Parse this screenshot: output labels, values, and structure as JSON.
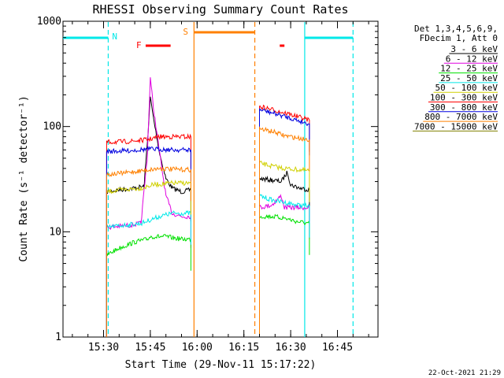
{
  "chart_data": {
    "type": "line",
    "title": "RHESSI Observing Summary Count Rates",
    "xlabel": "Start Time (29-Nov-11 15:17:22)",
    "ylabel": "Count Rate (s⁻¹ detector⁻¹)",
    "y_scale": "log",
    "ylim": [
      1,
      1000
    ],
    "xlim": [
      "15:17",
      "16:58"
    ],
    "x_ticks": [
      "15:30",
      "15:45",
      "16:00",
      "16:15",
      "16:30",
      "16:45"
    ],
    "y_ticks": [
      "1",
      "10",
      "100",
      "1000"
    ],
    "footer": "22-Oct-2021 21:29",
    "legend_header": [
      "Det 1,3,4,5,6,9,",
      "FDecim 1, Att 0"
    ],
    "series": [
      {
        "name": "3 - 6 keV",
        "color": "#000000",
        "segments": [
          [
            [
              "15:31",
              24
            ],
            [
              "15:35",
              25
            ],
            [
              "15:40",
              26
            ],
            [
              "15:43",
              27
            ],
            [
              "15:44.5",
              110
            ],
            [
              "15:45",
              190
            ],
            [
              "15:46",
              120
            ],
            [
              "15:48",
              55
            ],
            [
              "15:50",
              32
            ],
            [
              "15:52",
              26
            ],
            [
              "15:55",
              24
            ],
            [
              "15:58",
              25
            ]
          ],
          [
            [
              "16:20",
              32
            ],
            [
              "16:24",
              31
            ],
            [
              "16:27",
              30
            ],
            [
              "16:29",
              37
            ],
            [
              "16:30",
              28
            ],
            [
              "16:33",
              26
            ],
            [
              "16:36",
              25
            ]
          ]
        ]
      },
      {
        "name": "6 - 12 keV",
        "color": "#e000e0",
        "segments": [
          [
            [
              "15:31",
              11
            ],
            [
              "15:38",
              11.5
            ],
            [
              "15:42",
              12
            ],
            [
              "15:44",
              50
            ],
            [
              "15:45",
              290
            ],
            [
              "15:46",
              150
            ],
            [
              "15:48",
              55
            ],
            [
              "15:50",
              22
            ],
            [
              "15:52",
              15
            ],
            [
              "15:55",
              14
            ],
            [
              "15:58",
              14
            ]
          ],
          [
            [
              "16:20",
              17
            ],
            [
              "16:24",
              18
            ],
            [
              "16:27",
              22
            ],
            [
              "16:28",
              17
            ],
            [
              "16:32",
              17
            ],
            [
              "16:36",
              17
            ]
          ]
        ]
      },
      {
        "name": "12 - 25 keV",
        "color": "#00e000",
        "segments": [
          [
            [
              "15:31",
              6
            ],
            [
              "15:35",
              7
            ],
            [
              "15:40",
              8
            ],
            [
              "15:44",
              8.5
            ],
            [
              "15:45",
              9
            ],
            [
              "15:50",
              9
            ],
            [
              "15:55",
              8.5
            ],
            [
              "15:58",
              8.5
            ]
          ],
          [
            [
              "16:20",
              14
            ],
            [
              "16:24",
              14
            ],
            [
              "16:28",
              13.5
            ],
            [
              "16:32",
              12.5
            ],
            [
              "16:36",
              12
            ]
          ]
        ]
      },
      {
        "name": "25 - 50 keV",
        "color": "#00e8e8",
        "segments": [
          [
            [
              "15:31",
              11
            ],
            [
              "15:36",
              11.5
            ],
            [
              "15:42",
              12
            ],
            [
              "15:45",
              13
            ],
            [
              "15:48",
              14
            ],
            [
              "15:52",
              15
            ],
            [
              "15:58",
              15
            ]
          ],
          [
            [
              "16:20",
              22
            ],
            [
              "16:24",
              20
            ],
            [
              "16:28",
              19
            ],
            [
              "16:32",
              18
            ],
            [
              "16:36",
              17.5
            ]
          ]
        ]
      },
      {
        "name": "50 - 100 keV",
        "color": "#d0d000",
        "segments": [
          [
            [
              "15:31",
              24
            ],
            [
              "15:36",
              25
            ],
            [
              "15:42",
              26
            ],
            [
              "15:46",
              28
            ],
            [
              "15:52",
              29
            ],
            [
              "15:58",
              29
            ]
          ],
          [
            [
              "16:20",
              45
            ],
            [
              "16:24",
              42
            ],
            [
              "16:28",
              40
            ],
            [
              "16:32",
              39
            ],
            [
              "16:36",
              38
            ]
          ]
        ]
      },
      {
        "name": "100 - 300 keV",
        "color": "#ff0000",
        "segments": [
          [
            [
              "15:31",
              71
            ],
            [
              "15:38",
              72
            ],
            [
              "15:44",
              75
            ],
            [
              "15:48",
              80
            ],
            [
              "15:52",
              80
            ],
            [
              "15:58",
              80
            ]
          ],
          [
            [
              "16:20",
              155
            ],
            [
              "16:24",
              145
            ],
            [
              "16:28",
              135
            ],
            [
              "16:32",
              125
            ],
            [
              "16:36",
              115
            ]
          ]
        ]
      },
      {
        "name": "300 - 800 keV",
        "color": "#0000e0",
        "segments": [
          [
            [
              "15:31",
              58
            ],
            [
              "15:38",
              59
            ],
            [
              "15:44",
              61
            ],
            [
              "15:48",
              61
            ],
            [
              "15:52",
              60
            ],
            [
              "15:58",
              60
            ]
          ],
          [
            [
              "16:20",
              145
            ],
            [
              "16:24",
              135
            ],
            [
              "16:28",
              125
            ],
            [
              "16:32",
              115
            ],
            [
              "16:36",
              106
            ]
          ]
        ]
      },
      {
        "name": "800 - 7000 keV",
        "color": "#ff8000",
        "segments": [
          [
            [
              "15:31",
              35
            ],
            [
              "15:36",
              36
            ],
            [
              "15:42",
              38
            ],
            [
              "15:48",
              40
            ],
            [
              "15:54",
              39
            ],
            [
              "15:58",
              39
            ]
          ],
          [
            [
              "16:20",
              95
            ],
            [
              "16:24",
              90
            ],
            [
              "16:28",
              82
            ],
            [
              "16:32",
              78
            ],
            [
              "16:36",
              75
            ]
          ]
        ]
      },
      {
        "name": "7000 - 15000 keV",
        "color": "#808000",
        "segments": []
      }
    ],
    "annotations": {
      "night_label": "N",
      "saa_label": "S",
      "flare_label": "F",
      "night_color": "#00e8e8",
      "saa_color": "#ff8000",
      "flare_color": "#ff0000",
      "night_bars": [
        [
          "15:17",
          "15:31.5"
        ],
        [
          "16:34.5",
          "16:50"
        ]
      ],
      "night_lines": [
        "15:31.5",
        "16:34.5",
        "16:50"
      ],
      "saa_bar": [
        "15:59",
        "16:18.5"
      ],
      "saa_lines": [
        "15:59",
        "16:18.5"
      ],
      "flare_bars": [
        [
          "15:43.5",
          "15:51.5"
        ],
        [
          "16:26.5",
          "16:28"
        ]
      ]
    }
  }
}
